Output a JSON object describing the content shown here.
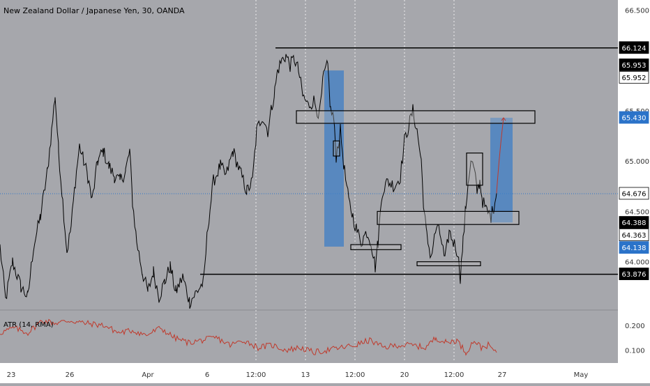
{
  "colors": {
    "background": "#a6a7ac",
    "axis_background": "#ffffff",
    "price_line": "#000000",
    "atr_line": "#c0392b",
    "zone_fill": "#3d7ec6",
    "box_fill": "#bcbcbc",
    "last_price": "#2b73c9",
    "black_badge": "#000000"
  },
  "chart_data": {
    "type": "line",
    "title": "New Zealand Dollar / Japanese Yen, 30, OANDA",
    "price_axis": {
      "ylim": [
        63.52,
        66.6
      ],
      "ticks": [
        "66.500",
        "65.500",
        "65.000",
        "64.500",
        "64.000"
      ],
      "tick_values": [
        66.5,
        65.5,
        65.0,
        64.5,
        64.0
      ],
      "badges": [
        {
          "value": 66.124,
          "label": "66.124",
          "style": "black"
        },
        {
          "value": 65.953,
          "label": "65.953",
          "style": "black"
        },
        {
          "value": 65.952,
          "label": "65.952",
          "style": "white"
        },
        {
          "value": 65.43,
          "label": "65.430",
          "style": "blue"
        },
        {
          "value": 64.676,
          "label": "64.676",
          "style": "white"
        },
        {
          "value": 64.388,
          "label": "64.388",
          "style": "black"
        },
        {
          "value": 64.363,
          "label": "64.363",
          "style": "white"
        },
        {
          "value": 64.138,
          "label": "64.138",
          "style": "blue"
        },
        {
          "value": 63.876,
          "label": "63.876",
          "style": "black"
        }
      ]
    },
    "x_axis": {
      "labels": [
        "23",
        "26",
        "Apr",
        "6",
        "12:00",
        "13",
        "12:00",
        "20",
        "12:00",
        "27",
        "May"
      ],
      "positions": [
        16,
        100,
        212,
        297,
        367,
        438,
        509,
        580,
        651,
        720,
        833
      ],
      "dashed_gridlines": [
        367,
        438,
        509,
        580,
        651
      ]
    },
    "series": [
      {
        "name": "NZDJPY",
        "anchors": [
          [
            0,
            64.15
          ],
          [
            8,
            63.62
          ],
          [
            18,
            64.0
          ],
          [
            30,
            63.75
          ],
          [
            40,
            63.65
          ],
          [
            48,
            64.15
          ],
          [
            58,
            64.45
          ],
          [
            68,
            64.9
          ],
          [
            74,
            65.3
          ],
          [
            79,
            65.65
          ],
          [
            84,
            65.1
          ],
          [
            90,
            64.6
          ],
          [
            96,
            64.1
          ],
          [
            102,
            64.35
          ],
          [
            108,
            64.8
          ],
          [
            114,
            65.15
          ],
          [
            120,
            65.0
          ],
          [
            126,
            64.85
          ],
          [
            132,
            64.6
          ],
          [
            140,
            65.0
          ],
          [
            148,
            65.1
          ],
          [
            156,
            64.95
          ],
          [
            164,
            64.85
          ],
          [
            172,
            64.8
          ],
          [
            180,
            64.9
          ],
          [
            186,
            65.1
          ],
          [
            190,
            64.6
          ],
          [
            196,
            64.2
          ],
          [
            204,
            63.9
          ],
          [
            212,
            63.7
          ],
          [
            220,
            63.9
          ],
          [
            228,
            63.65
          ],
          [
            236,
            63.8
          ],
          [
            244,
            63.95
          ],
          [
            252,
            63.7
          ],
          [
            262,
            63.85
          ],
          [
            272,
            63.6
          ],
          [
            282,
            63.7
          ],
          [
            292,
            63.8
          ],
          [
            298,
            64.35
          ],
          [
            306,
            64.8
          ],
          [
            316,
            64.95
          ],
          [
            324,
            64.85
          ],
          [
            334,
            65.1
          ],
          [
            344,
            64.9
          ],
          [
            354,
            64.7
          ],
          [
            362,
            64.8
          ],
          [
            368,
            65.3
          ],
          [
            376,
            65.45
          ],
          [
            384,
            65.3
          ],
          [
            390,
            65.55
          ],
          [
            394,
            65.7
          ],
          [
            398,
            65.9
          ],
          [
            404,
            66.0
          ],
          [
            410,
            66.05
          ],
          [
            416,
            65.95
          ],
          [
            422,
            66.02
          ],
          [
            428,
            65.9
          ],
          [
            434,
            65.65
          ],
          [
            442,
            65.55
          ],
          [
            450,
            65.6
          ],
          [
            458,
            65.45
          ],
          [
            464,
            65.85
          ],
          [
            470,
            65.95
          ],
          [
            474,
            65.5
          ],
          [
            478,
            65.45
          ],
          [
            482,
            65.05
          ],
          [
            488,
            65.3
          ],
          [
            494,
            64.9
          ],
          [
            500,
            64.6
          ],
          [
            506,
            64.45
          ],
          [
            512,
            64.3
          ],
          [
            518,
            64.2
          ],
          [
            526,
            64.3
          ],
          [
            532,
            64.2
          ],
          [
            538,
            63.95
          ],
          [
            542,
            64.2
          ],
          [
            548,
            64.7
          ],
          [
            556,
            64.8
          ],
          [
            566,
            64.75
          ],
          [
            574,
            64.85
          ],
          [
            580,
            65.2
          ],
          [
            586,
            65.35
          ],
          [
            592,
            65.5
          ],
          [
            598,
            65.3
          ],
          [
            604,
            65.0
          ],
          [
            608,
            64.5
          ],
          [
            612,
            64.25
          ],
          [
            618,
            64.05
          ],
          [
            626,
            64.35
          ],
          [
            632,
            64.25
          ],
          [
            638,
            64.0
          ],
          [
            644,
            64.3
          ],
          [
            650,
            64.2
          ],
          [
            656,
            64.1
          ],
          [
            660,
            63.85
          ],
          [
            664,
            64.2
          ],
          [
            668,
            64.55
          ],
          [
            672,
            64.85
          ],
          [
            676,
            65.0
          ],
          [
            680,
            64.9
          ],
          [
            684,
            64.7
          ],
          [
            688,
            64.8
          ],
          [
            692,
            64.6
          ],
          [
            698,
            64.5
          ],
          [
            704,
            64.45
          ],
          [
            708,
            64.55
          ],
          [
            712,
            64.68
          ]
        ]
      },
      {
        "name": "ATR",
        "anchors": [
          [
            0,
            0.17
          ],
          [
            20,
            0.19
          ],
          [
            40,
            0.17
          ],
          [
            60,
            0.22
          ],
          [
            80,
            0.21
          ],
          [
            100,
            0.22
          ],
          [
            120,
            0.21
          ],
          [
            150,
            0.2
          ],
          [
            170,
            0.17
          ],
          [
            190,
            0.18
          ],
          [
            210,
            0.16
          ],
          [
            230,
            0.19
          ],
          [
            250,
            0.15
          ],
          [
            270,
            0.13
          ],
          [
            290,
            0.14
          ],
          [
            310,
            0.15
          ],
          [
            330,
            0.12
          ],
          [
            350,
            0.14
          ],
          [
            370,
            0.11
          ],
          [
            390,
            0.12
          ],
          [
            410,
            0.1
          ],
          [
            430,
            0.11
          ],
          [
            450,
            0.09
          ],
          [
            470,
            0.1
          ],
          [
            490,
            0.11
          ],
          [
            510,
            0.12
          ],
          [
            530,
            0.14
          ],
          [
            550,
            0.11
          ],
          [
            570,
            0.12
          ],
          [
            590,
            0.12
          ],
          [
            610,
            0.11
          ],
          [
            625,
            0.15
          ],
          [
            640,
            0.13
          ],
          [
            655,
            0.14
          ],
          [
            668,
            0.09
          ],
          [
            680,
            0.14
          ],
          [
            690,
            0.11
          ],
          [
            700,
            0.12
          ],
          [
            712,
            0.09
          ]
        ]
      }
    ],
    "indicator": {
      "label": "ATR (14, RMA)",
      "ylim": [
        0.05,
        0.26
      ],
      "ticks": [
        "0.200",
        "0.100"
      ],
      "tick_values": [
        0.2,
        0.1
      ]
    },
    "annotations": {
      "horizontal_lines": [
        {
          "value": 66.124,
          "x_from": 395,
          "x_to": 886
        },
        {
          "value": 63.876,
          "x_from": 287,
          "x_to": 886
        }
      ],
      "rectangles": [
        {
          "kind": "box",
          "x1": 425,
          "x2": 767,
          "y1": 65.375,
          "y2": 65.5
        },
        {
          "kind": "zone",
          "x1": 465,
          "x2": 493,
          "y1": 64.15,
          "y2": 65.9
        },
        {
          "kind": "box",
          "x1": 478,
          "x2": 487,
          "y1": 65.05,
          "y2": 65.2
        },
        {
          "kind": "box",
          "x1": 503,
          "x2": 575,
          "y1": 64.12,
          "y2": 64.17
        },
        {
          "kind": "box",
          "x1": 541,
          "x2": 744,
          "y1": 64.37,
          "y2": 64.5
        },
        {
          "kind": "box",
          "x1": 598,
          "x2": 689,
          "y1": 63.96,
          "y2": 64.0
        },
        {
          "kind": "box",
          "x1": 669,
          "x2": 692,
          "y1": 64.76,
          "y2": 65.08
        },
        {
          "kind": "zone",
          "x1": 703,
          "x2": 735,
          "y1": 64.39,
          "y2": 65.43
        }
      ],
      "projection": {
        "points": [
          [
            712,
            64.68
          ],
          [
            722,
            65.43
          ]
        ]
      },
      "last_price_value": 64.676
    }
  }
}
